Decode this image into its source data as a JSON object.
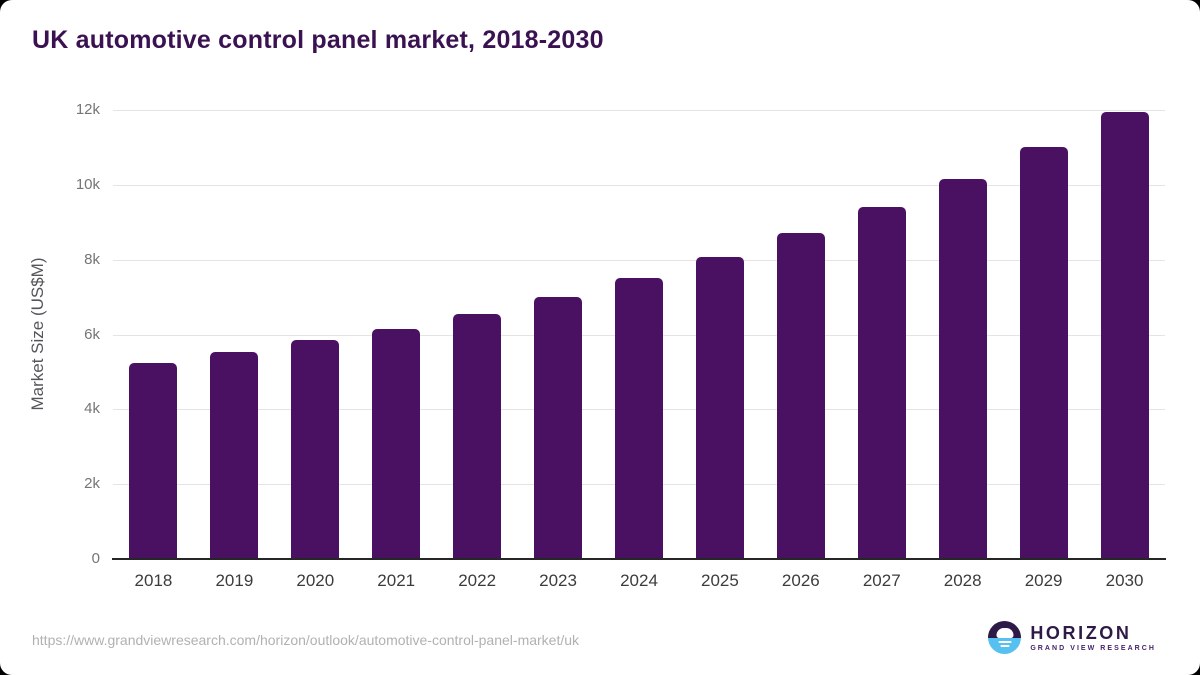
{
  "title": "UK automotive control panel market, 2018-2030",
  "source_url": "https://www.grandviewresearch.com/horizon/outlook/automotive-control-panel-market/uk",
  "logo": {
    "name": "HORIZON",
    "subtitle": "GRAND VIEW RESEARCH",
    "icon": "sunrise-over-water-icon",
    "purple": "#2e1a47",
    "blue": "#56c1f1"
  },
  "colors": {
    "bar": "#4a1162",
    "title_text": "#3a1252",
    "gridline": "#e4e4e4",
    "axis_line": "#262626",
    "y_tick_label": "#757575",
    "x_tick_label": "#3c3c3c",
    "axis_title": "#56565a",
    "url_text": "#b1b1b1",
    "background": "#ffffff"
  },
  "chart_data": {
    "type": "bar",
    "title": "UK automotive control panel market, 2018-2030",
    "categories": [
      "2018",
      "2019",
      "2020",
      "2021",
      "2022",
      "2023",
      "2024",
      "2025",
      "2026",
      "2027",
      "2028",
      "2029",
      "2030"
    ],
    "values": [
      5250,
      5530,
      5850,
      6160,
      6540,
      7010,
      7500,
      8070,
      8720,
      9400,
      10160,
      11010,
      11950
    ],
    "xlabel": "",
    "ylabel": "Market Size (US$M)",
    "ylim": [
      0,
      12000
    ],
    "ytick_values": [
      0,
      2000,
      4000,
      6000,
      8000,
      10000,
      12000
    ],
    "ytick_labels": [
      "0",
      "2k",
      "4k",
      "6k",
      "8k",
      "10k",
      "12k"
    ],
    "grid": true,
    "legend": false,
    "bar_color": "#4a1162"
  }
}
